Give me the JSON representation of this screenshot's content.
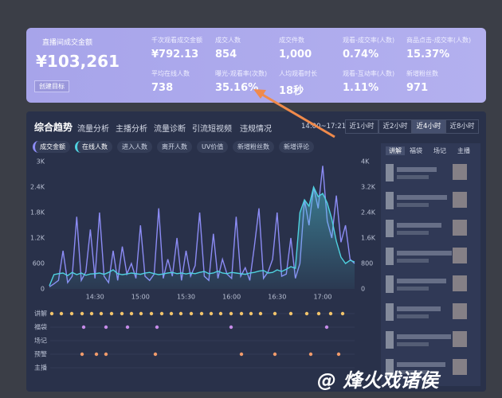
{
  "header": {
    "title": "直播间成交金额",
    "amount": "¥103,261",
    "button": "创建目标",
    "metrics": [
      {
        "label": "千次观看成交金额",
        "value": "¥792.13"
      },
      {
        "label": "成交人数",
        "value": "854"
      },
      {
        "label": "成交件数",
        "value": "1,000"
      },
      {
        "label": "观看-成交率(人数)",
        "value": "0.74%"
      },
      {
        "label": "商品点击-成交率(人数)",
        "value": "15.37%"
      },
      {
        "label": "平均在线人数",
        "value": "738"
      },
      {
        "label": "曝光-观看率(次数)",
        "value": "35.16%"
      },
      {
        "label": "人均观看时长",
        "value": "18秒"
      },
      {
        "label": "观看-互动率(人数)",
        "value": "1.11%"
      },
      {
        "label": "新增粉丝数",
        "value": "971"
      }
    ]
  },
  "tabs": [
    "综合趋势",
    "流量分析",
    "主播分析",
    "流量诊断",
    "引流短视频",
    "违规情况"
  ],
  "time_range": "14:00~17:21",
  "range_buttons": [
    "近1小时",
    "近2小时",
    "近4小时",
    "近8小时"
  ],
  "other_metrics": [
    "进入人数",
    "离开人数",
    "UV价值",
    "新增粉丝数",
    "新增评论"
  ],
  "event_rows": [
    "讲解",
    "福袋",
    "场记",
    "预警",
    "主播"
  ],
  "side_tabs": [
    "讲解",
    "福袋",
    "场记",
    "主播"
  ],
  "watermark": "@ 烽火戏诸侯",
  "chart_data": {
    "type": "line",
    "categories": [
      null,
      null,
      null,
      null,
      null,
      null,
      null,
      null,
      null,
      null,
      "14:30",
      null,
      null,
      null,
      null,
      null,
      null,
      null,
      null,
      null,
      "15:00",
      null,
      null,
      null,
      null,
      null,
      null,
      null,
      null,
      null,
      "15:30",
      null,
      null,
      null,
      null,
      null,
      null,
      null,
      null,
      null,
      "16:00",
      null,
      null,
      null,
      null,
      null,
      null,
      null,
      null,
      null,
      "16:30",
      null,
      null,
      null,
      null,
      null,
      null,
      null,
      null,
      null,
      "17:00",
      null,
      null,
      null,
      null,
      null,
      null,
      null
    ],
    "series": [
      {
        "name": "成交金额",
        "color": "#8c8cf5",
        "values": [
          50,
          120,
          200,
          900,
          150,
          300,
          1700,
          200,
          400,
          1400,
          250,
          1800,
          300,
          150,
          900,
          200,
          1000,
          350,
          600,
          250,
          1500,
          300,
          200,
          350,
          1900,
          250,
          700,
          300,
          1200,
          200,
          900,
          300,
          550,
          1800,
          300,
          200,
          1300,
          250,
          700,
          350,
          250,
          1700,
          300,
          500,
          200,
          1000,
          1900,
          250,
          400,
          700,
          1800,
          300,
          350,
          1200,
          250,
          600,
          2100,
          1500,
          2400,
          1900,
          2900,
          1600,
          1200,
          2200,
          1100,
          1500,
          700,
          600
        ]
      },
      {
        "name": "在线人数",
        "color": "#4fd2e0",
        "axis": "y2",
        "values": [
          100,
          450,
          480,
          500,
          420,
          520,
          450,
          500,
          430,
          470,
          480,
          500,
          460,
          520,
          600,
          480,
          450,
          470,
          500,
          480,
          460,
          500,
          520,
          480,
          450,
          470,
          500,
          520,
          480,
          500,
          470,
          500,
          480,
          520,
          550,
          480,
          500,
          560,
          500,
          480,
          520,
          500,
          480,
          460,
          500,
          520,
          560,
          580,
          500,
          520,
          600,
          550,
          620,
          700,
          650,
          2400,
          2800,
          2600,
          3200,
          2900,
          3000,
          2700,
          2200,
          1500,
          1000,
          800,
          900,
          850
        ]
      }
    ],
    "ylim": [
      0,
      3000
    ],
    "yticks": [
      0,
      600,
      {
        "value": 1200,
        "label": "1.2K"
      },
      {
        "value": 1800,
        "label": "1.8K"
      },
      {
        "value": 2400,
        "label": "2.4K"
      },
      {
        "value": 3000,
        "label": "3K"
      }
    ],
    "y2lim": [
      0,
      4000
    ],
    "y2ticks": [
      0,
      800,
      {
        "value": 1600,
        "label": "1.6K"
      },
      {
        "value": 2400,
        "label": "2.4K"
      },
      {
        "value": 3200,
        "label": "3.2K"
      },
      {
        "value": 4000,
        "label": "4K"
      }
    ],
    "grid": false
  }
}
